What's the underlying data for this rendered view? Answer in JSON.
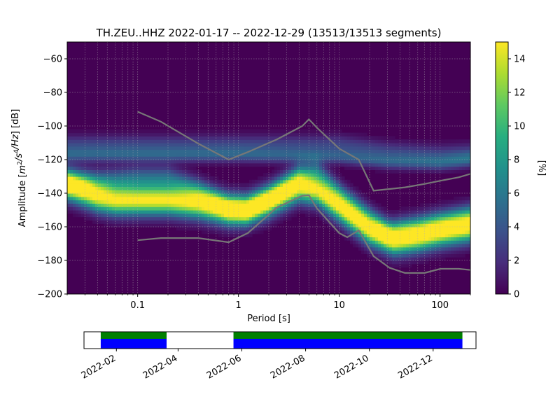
{
  "chart_data": [
    {
      "type": "heatmap",
      "title": "TH.ZEU..HHZ   2022-01-17 -- 2022-12-29  (13513/13513 segments)",
      "xlabel": "Period [s]",
      "ylabel": "Amplitude [$m^2/s^4/Hz$] [dB]",
      "x_scale": "log",
      "xlim": [
        0.02,
        200
      ],
      "ylim": [
        -200,
        -50
      ],
      "x_ticks": [
        {
          "value": 0.1,
          "label": "0.1"
        },
        {
          "value": 1,
          "label": "1"
        },
        {
          "value": 10,
          "label": "10"
        },
        {
          "value": 100,
          "label": "100"
        }
      ],
      "y_ticks": [
        {
          "value": -60,
          "label": "−60"
        },
        {
          "value": -80,
          "label": "−80"
        },
        {
          "value": -100,
          "label": "−100"
        },
        {
          "value": -120,
          "label": "−120"
        },
        {
          "value": -140,
          "label": "−140"
        },
        {
          "value": -160,
          "label": "−160"
        },
        {
          "value": -180,
          "label": "−180"
        },
        {
          "value": -200,
          "label": "−200"
        }
      ],
      "grid": true,
      "colormap": "viridis",
      "colorbar": {
        "label": "[%]",
        "range": [
          0,
          15
        ],
        "ticks": [
          {
            "value": 0,
            "label": "0"
          },
          {
            "value": 2,
            "label": "2"
          },
          {
            "value": 4,
            "label": "4"
          },
          {
            "value": 6,
            "label": "6"
          },
          {
            "value": 8,
            "label": "8"
          },
          {
            "value": 10,
            "label": "10"
          },
          {
            "value": 12,
            "label": "12"
          },
          {
            "value": 14,
            "label": "14"
          }
        ]
      },
      "density_bands": [
        {
          "points": [
            [
              0.02,
              -111
            ],
            [
              1,
              -111
            ],
            [
              10,
              -111
            ],
            [
              30,
              -115
            ],
            [
              100,
              -117
            ],
            [
              200,
              -116
            ]
          ],
          "width_db": 4,
          "peak_percent": 3
        },
        {
          "points": [
            [
              0.02,
              -117
            ],
            [
              1,
              -117
            ],
            [
              10,
              -118
            ],
            [
              30,
              -121
            ],
            [
              100,
              -122
            ],
            [
              200,
              -120
            ]
          ],
          "width_db": 3,
          "peak_percent": 4
        },
        {
          "points": [
            [
              0.02,
              -135
            ],
            [
              0.03,
              -139
            ],
            [
              0.04,
              -142
            ],
            [
              0.06,
              -144
            ],
            [
              0.1,
              -144
            ],
            [
              0.2,
              -144
            ],
            [
              0.4,
              -146
            ],
            [
              0.8,
              -150
            ],
            [
              1.2,
              -150
            ],
            [
              2,
              -145
            ],
            [
              4,
              -136
            ],
            [
              6,
              -138
            ],
            [
              10,
              -148
            ],
            [
              20,
              -162
            ],
            [
              35,
              -168
            ],
            [
              60,
              -166
            ],
            [
              100,
              -163
            ],
            [
              200,
              -160
            ]
          ],
          "width_db": 6,
          "peak_percent": 15
        },
        {
          "points": [
            [
              0.04,
              -133
            ],
            [
              0.1,
              -131
            ],
            [
              0.2,
              -131
            ],
            [
              0.4,
              -138
            ],
            [
              0.8,
              -148
            ],
            [
              1.2,
              -150
            ],
            [
              2,
              -142
            ],
            [
              4,
              -129
            ],
            [
              6,
              -127
            ],
            [
              10,
              -140
            ],
            [
              30,
              -163
            ],
            [
              100,
              -157
            ],
            [
              200,
              -153
            ]
          ],
          "width_db": 5,
          "peak_percent": 5
        }
      ],
      "reference_curves": [
        {
          "points": [
            [
              0.1,
              -91.5
            ],
            [
              0.17,
              -97.4
            ],
            [
              0.4,
              -110.5
            ],
            [
              0.8,
              -120
            ],
            [
              1.24,
              -115.5
            ],
            [
              2.4,
              -108
            ],
            [
              4.3,
              -100
            ],
            [
              5,
              -96
            ],
            [
              6,
              -101
            ],
            [
              10,
              -113.5
            ],
            [
              15.6,
              -120
            ],
            [
              21.9,
              -138.5
            ],
            [
              31.6,
              -137.5
            ],
            [
              45,
              -136.5
            ],
            [
              70,
              -134.5
            ],
            [
              101,
              -132.6
            ],
            [
              154,
              -130.5
            ],
            [
              200,
              -128.5
            ]
          ]
        },
        {
          "points": [
            [
              0.1,
              -168
            ],
            [
              0.17,
              -166.7
            ],
            [
              0.4,
              -166.7
            ],
            [
              0.8,
              -169.2
            ],
            [
              1.24,
              -163.7
            ],
            [
              2.4,
              -148.6
            ],
            [
              4.3,
              -141.5
            ],
            [
              5,
              -141.2
            ],
            [
              6,
              -149
            ],
            [
              10,
              -163.8
            ],
            [
              12,
              -166.2
            ],
            [
              15.6,
              -162.1
            ],
            [
              21.9,
              -177.5
            ],
            [
              31.6,
              -184.4
            ],
            [
              45,
              -187.5
            ],
            [
              70,
              -187.5
            ],
            [
              101,
              -185
            ],
            [
              154,
              -185
            ],
            [
              200,
              -185.7
            ]
          ]
        }
      ]
    },
    {
      "type": "timeline",
      "date_range": [
        "2022-01-01",
        "2023-01-11"
      ],
      "x_ticks": [
        {
          "value": "2022-02-01",
          "label": "2022-02"
        },
        {
          "value": "2022-04-01",
          "label": "2022-04"
        },
        {
          "value": "2022-06-01",
          "label": "2022-06"
        },
        {
          "value": "2022-08-01",
          "label": "2022-08"
        },
        {
          "value": "2022-10-01",
          "label": "2022-10"
        },
        {
          "value": "2022-12-01",
          "label": "2022-12"
        }
      ],
      "coverage": [
        {
          "start": "2022-01-17",
          "end": "2022-03-21"
        },
        {
          "start": "2022-05-24",
          "end": "2022-12-29"
        }
      ],
      "rows": [
        {
          "color": "#0000ff"
        },
        {
          "color": "#008000"
        }
      ]
    }
  ]
}
